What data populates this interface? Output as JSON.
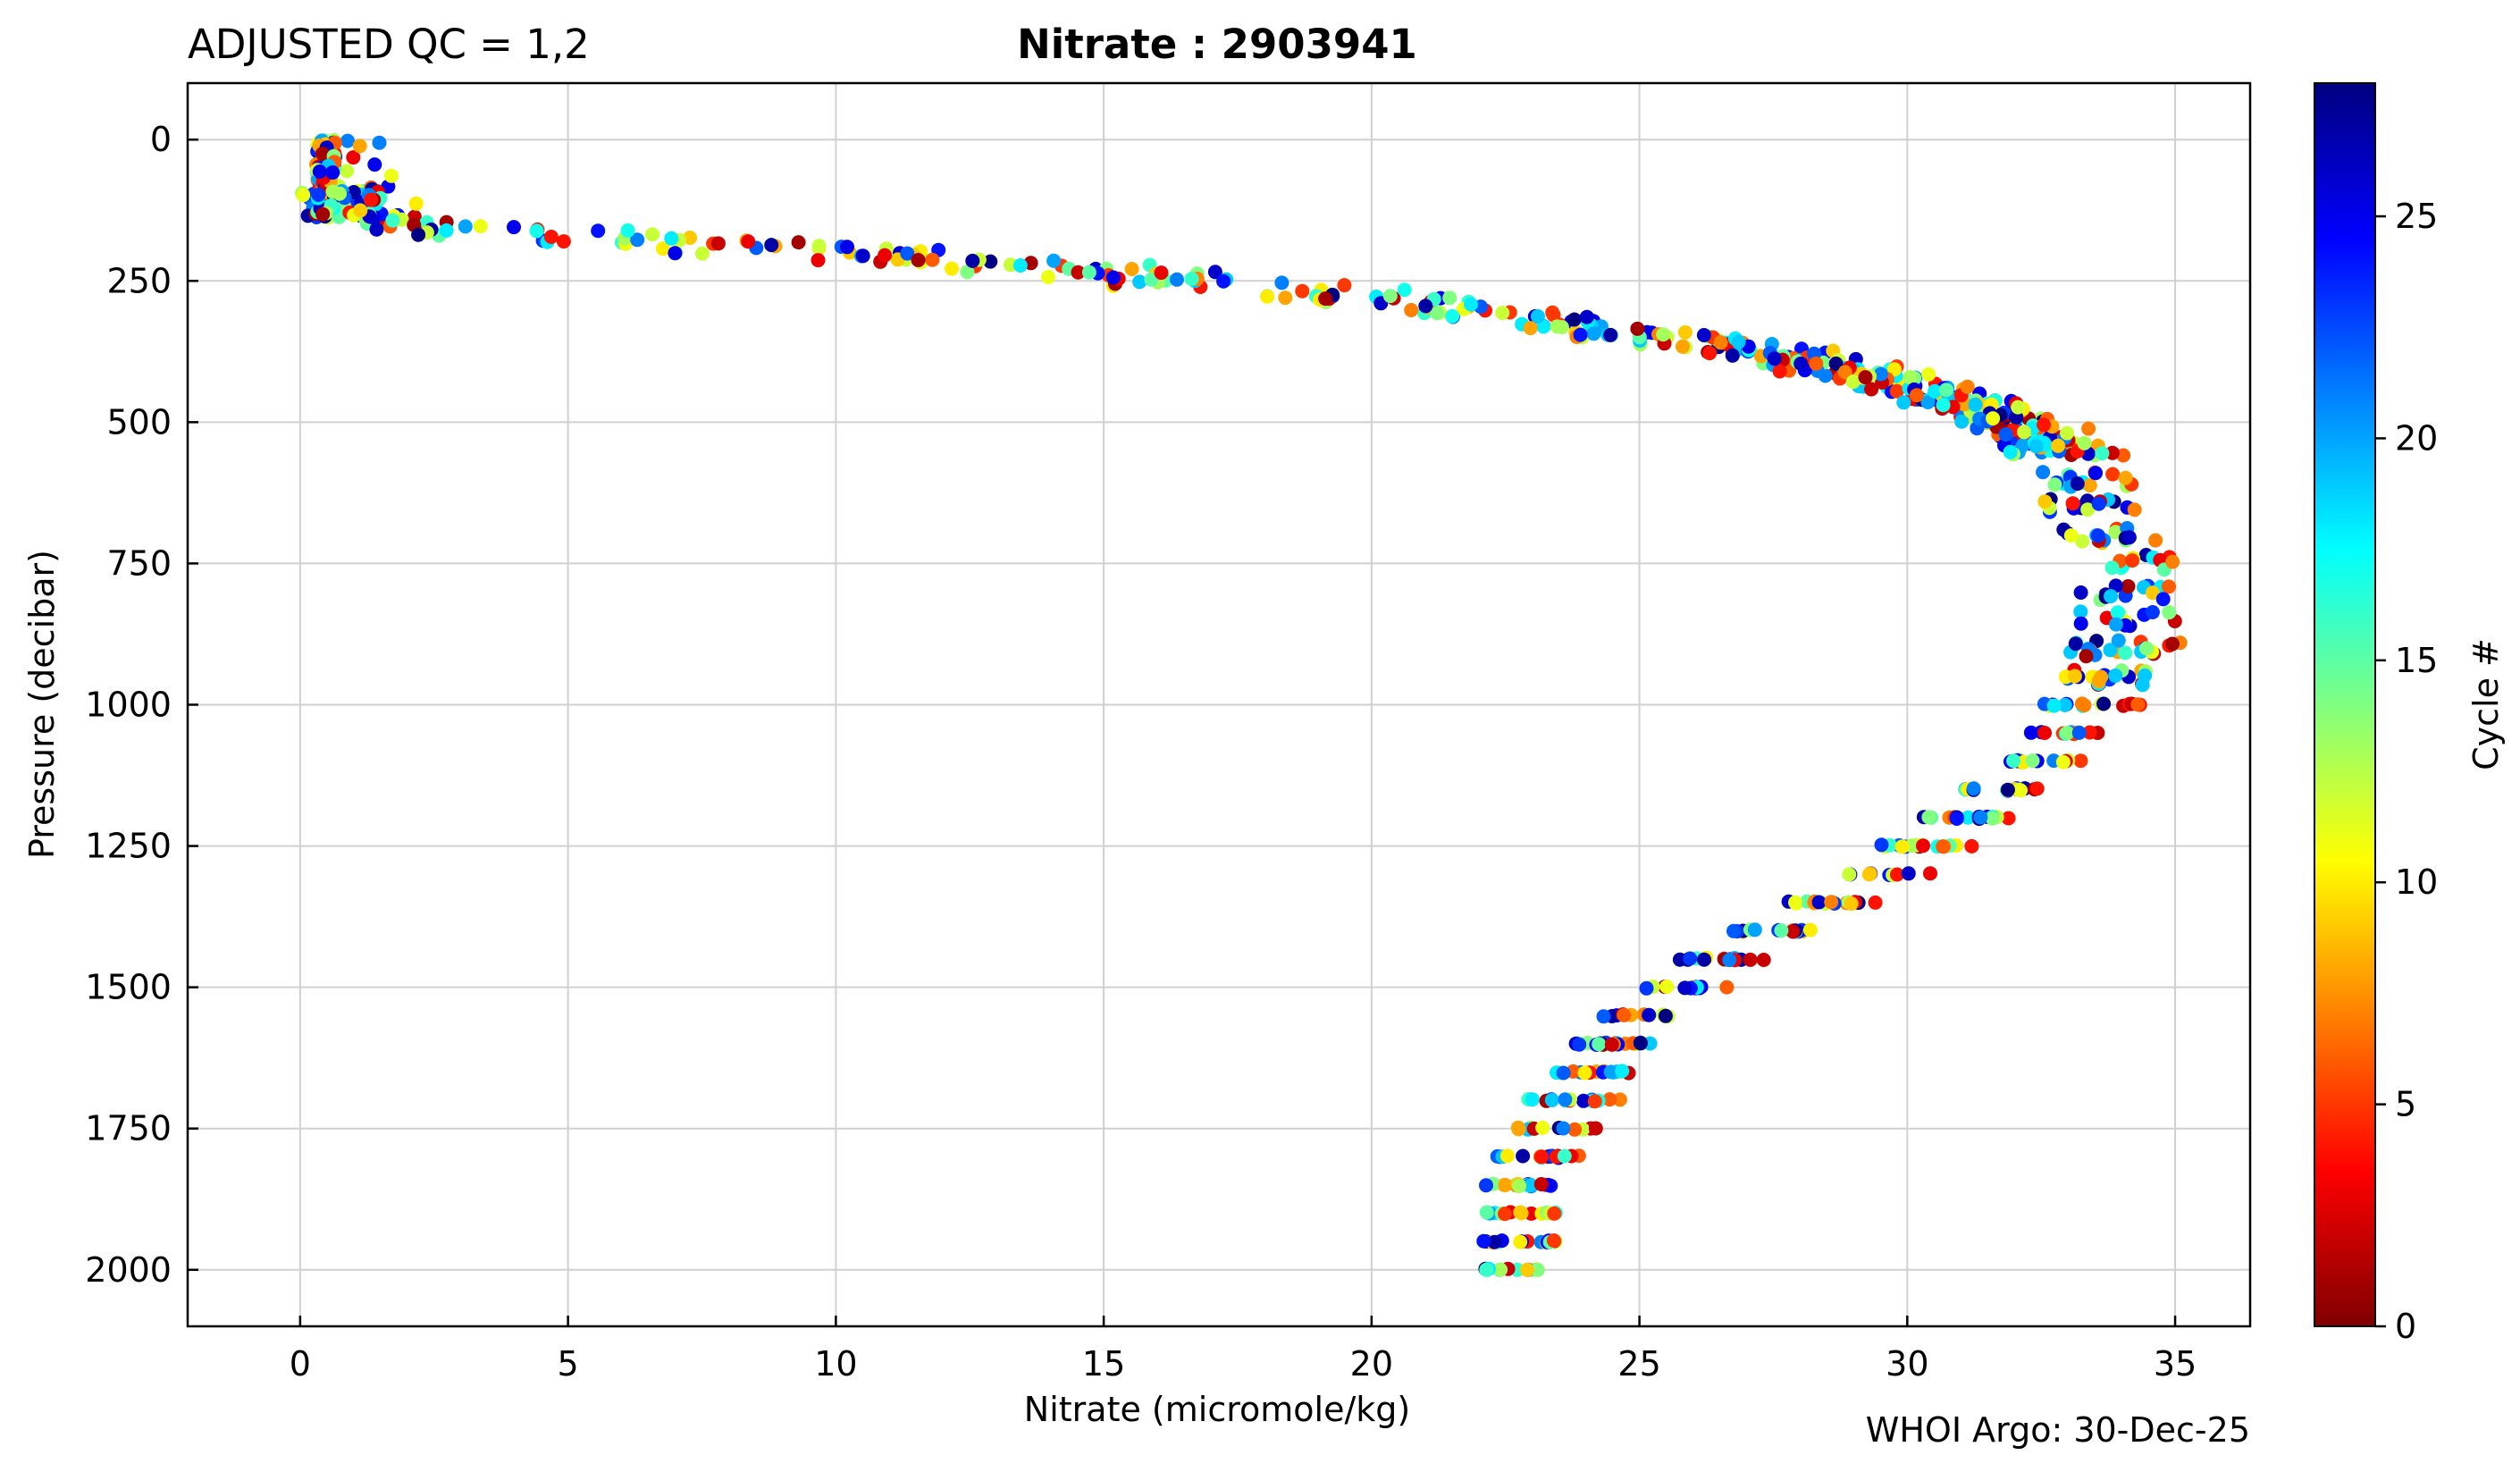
{
  "chart_data": {
    "type": "scatter",
    "title_left": "ADJUSTED QC = 1,2",
    "title_main": "Nitrate : 2903941",
    "xlabel": "Nitrate  (micromole/kg)",
    "ylabel": "Pressure  (decibar)",
    "colorbar_label": "Cycle #",
    "credit": "WHOI Argo: 30-Dec-25",
    "xlim": [
      -2.1,
      36.4
    ],
    "ylim": [
      2100,
      -100
    ],
    "y_inverted": true,
    "grid": true,
    "x_ticks": [
      0,
      5,
      10,
      15,
      20,
      25,
      30,
      35
    ],
    "x_tick_labels": [
      "0",
      "5",
      "10",
      "15",
      "20",
      "25",
      "30",
      "35"
    ],
    "y_ticks": [
      0,
      250,
      500,
      750,
      1000,
      1250,
      1500,
      1750,
      2000
    ],
    "y_tick_labels": [
      "0",
      "250",
      "500",
      "750",
      "1000",
      "1250",
      "1500",
      "1750",
      "2000"
    ],
    "colorbar": {
      "range": [
        0,
        28
      ],
      "ticks": [
        0,
        5,
        10,
        15,
        20,
        25
      ],
      "tick_labels": [
        "0",
        "5",
        "10",
        "15",
        "20",
        "25"
      ],
      "colormap": "jet",
      "colormap_stops": [
        "#800000",
        "#ff0000",
        "#ff8000",
        "#ffff00",
        "#80ff80",
        "#00ffff",
        "#0080ff",
        "#0000ff",
        "#000080"
      ]
    },
    "profile": [
      {
        "p": 0,
        "n": 0.4
      },
      {
        "p": 50,
        "n": 0.45
      },
      {
        "p": 100,
        "n": 0.5
      },
      {
        "p": 130,
        "n": 0.6
      },
      {
        "p": 150,
        "n": 2.0
      },
      {
        "p": 170,
        "n": 4.5
      },
      {
        "p": 190,
        "n": 8.0
      },
      {
        "p": 210,
        "n": 11.5
      },
      {
        "p": 225,
        "n": 13.5
      },
      {
        "p": 240,
        "n": 15.5
      },
      {
        "p": 255,
        "n": 17.0
      },
      {
        "p": 270,
        "n": 19.0
      },
      {
        "p": 290,
        "n": 21.0
      },
      {
        "p": 320,
        "n": 23.5
      },
      {
        "p": 350,
        "n": 25.5
      },
      {
        "p": 380,
        "n": 27.5
      },
      {
        "p": 420,
        "n": 29.5
      },
      {
        "p": 460,
        "n": 31.0
      },
      {
        "p": 500,
        "n": 32.0
      },
      {
        "p": 550,
        "n": 32.8
      },
      {
        "p": 600,
        "n": 33.2
      },
      {
        "p": 650,
        "n": 33.5
      },
      {
        "p": 700,
        "n": 33.7
      },
      {
        "p": 750,
        "n": 33.9
      },
      {
        "p": 800,
        "n": 34.0
      },
      {
        "p": 850,
        "n": 34.0
      },
      {
        "p": 900,
        "n": 33.9
      },
      {
        "p": 950,
        "n": 33.6
      },
      {
        "p": 1000,
        "n": 33.3
      },
      {
        "p": 1050,
        "n": 32.8
      },
      {
        "p": 1100,
        "n": 32.3
      },
      {
        "p": 1150,
        "n": 31.6
      },
      {
        "p": 1200,
        "n": 31.0
      },
      {
        "p": 1250,
        "n": 30.2
      },
      {
        "p": 1300,
        "n": 29.5
      },
      {
        "p": 1350,
        "n": 28.5
      },
      {
        "p": 1400,
        "n": 27.5
      },
      {
        "p": 1450,
        "n": 26.5
      },
      {
        "p": 1500,
        "n": 25.7
      },
      {
        "p": 1550,
        "n": 25.0
      },
      {
        "p": 1600,
        "n": 24.5
      },
      {
        "p": 1650,
        "n": 24.0
      },
      {
        "p": 1700,
        "n": 23.6
      },
      {
        "p": 1750,
        "n": 23.3
      },
      {
        "p": 1800,
        "n": 23.0
      },
      {
        "p": 1850,
        "n": 22.9
      },
      {
        "p": 1900,
        "n": 22.8
      },
      {
        "p": 1950,
        "n": 22.8
      },
      {
        "p": 2000,
        "n": 22.8
      }
    ],
    "cycles": [
      1,
      28
    ],
    "point_count": 1100
  }
}
